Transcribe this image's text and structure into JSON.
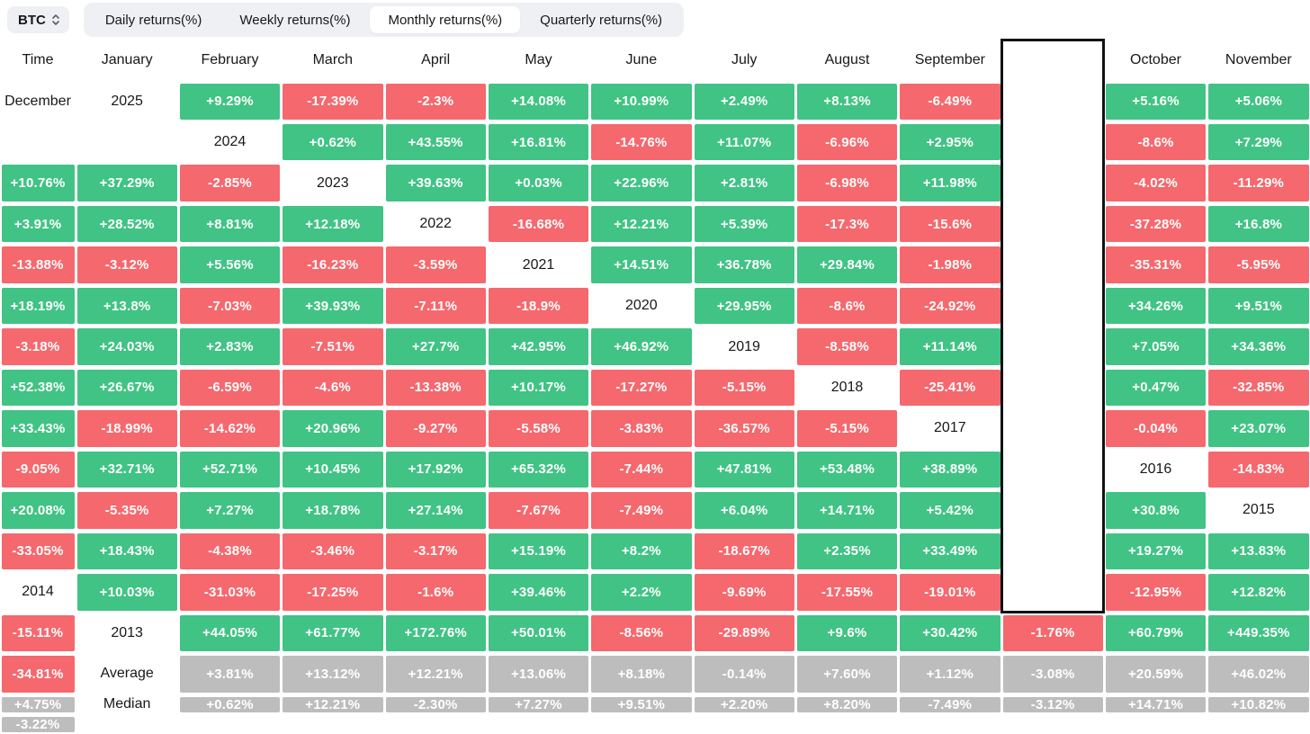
{
  "colors": {
    "positive": "#40C384",
    "negative": "#F5686D",
    "summary": "#BDBDBD",
    "highlight_border": "#101214",
    "pill_bg": "#EEF0F4",
    "text_dark": "#17181B"
  },
  "toolbar": {
    "symbol": "BTC",
    "tabs": [
      {
        "label": "Daily returns(%)",
        "active": false
      },
      {
        "label": "Weekly returns(%)",
        "active": false
      },
      {
        "label": "Monthly returns(%)",
        "active": true
      },
      {
        "label": "Quarterly returns(%)",
        "active": false
      }
    ]
  },
  "table": {
    "corner": "Time",
    "months": [
      "January",
      "February",
      "March",
      "April",
      "May",
      "June",
      "July",
      "August",
      "September",
      "October",
      "November",
      "December"
    ],
    "highlighted_month": "October",
    "rows": [
      {
        "label": "2025",
        "type": "year",
        "values": [
          "+9.29%",
          "-17.39%",
          "-2.3%",
          "+14.08%",
          "+10.99%",
          "+2.49%",
          "+8.13%",
          "-6.49%",
          "+5.16%",
          "+5.06%",
          "",
          ""
        ]
      },
      {
        "label": "2024",
        "type": "year",
        "values": [
          "+0.62%",
          "+43.55%",
          "+16.81%",
          "-14.76%",
          "+11.07%",
          "-6.96%",
          "+2.95%",
          "-8.6%",
          "+7.29%",
          "+10.76%",
          "+37.29%",
          "-2.85%"
        ]
      },
      {
        "label": "2023",
        "type": "year",
        "values": [
          "+39.63%",
          "+0.03%",
          "+22.96%",
          "+2.81%",
          "-6.98%",
          "+11.98%",
          "-4.02%",
          "-11.29%",
          "+3.91%",
          "+28.52%",
          "+8.81%",
          "+12.18%"
        ]
      },
      {
        "label": "2022",
        "type": "year",
        "values": [
          "-16.68%",
          "+12.21%",
          "+5.39%",
          "-17.3%",
          "-15.6%",
          "-37.28%",
          "+16.8%",
          "-13.88%",
          "-3.12%",
          "+5.56%",
          "-16.23%",
          "-3.59%"
        ]
      },
      {
        "label": "2021",
        "type": "year",
        "values": [
          "+14.51%",
          "+36.78%",
          "+29.84%",
          "-1.98%",
          "-35.31%",
          "-5.95%",
          "+18.19%",
          "+13.8%",
          "-7.03%",
          "+39.93%",
          "-7.11%",
          "-18.9%"
        ]
      },
      {
        "label": "2020",
        "type": "year",
        "values": [
          "+29.95%",
          "-8.6%",
          "-24.92%",
          "+34.26%",
          "+9.51%",
          "-3.18%",
          "+24.03%",
          "+2.83%",
          "-7.51%",
          "+27.7%",
          "+42.95%",
          "+46.92%"
        ]
      },
      {
        "label": "2019",
        "type": "year",
        "values": [
          "-8.58%",
          "+11.14%",
          "+7.05%",
          "+34.36%",
          "+52.38%",
          "+26.67%",
          "-6.59%",
          "-4.6%",
          "-13.38%",
          "+10.17%",
          "-17.27%",
          "-5.15%"
        ]
      },
      {
        "label": "2018",
        "type": "year",
        "values": [
          "-25.41%",
          "+0.47%",
          "-32.85%",
          "+33.43%",
          "-18.99%",
          "-14.62%",
          "+20.96%",
          "-9.27%",
          "-5.58%",
          "-3.83%",
          "-36.57%",
          "-5.15%"
        ]
      },
      {
        "label": "2017",
        "type": "year",
        "values": [
          "-0.04%",
          "+23.07%",
          "-9.05%",
          "+32.71%",
          "+52.71%",
          "+10.45%",
          "+17.92%",
          "+65.32%",
          "-7.44%",
          "+47.81%",
          "+53.48%",
          "+38.89%"
        ]
      },
      {
        "label": "2016",
        "type": "year",
        "values": [
          "-14.83%",
          "+20.08%",
          "-5.35%",
          "+7.27%",
          "+18.78%",
          "+27.14%",
          "-7.67%",
          "-7.49%",
          "+6.04%",
          "+14.71%",
          "+5.42%",
          "+30.8%"
        ]
      },
      {
        "label": "2015",
        "type": "year",
        "values": [
          "-33.05%",
          "+18.43%",
          "-4.38%",
          "-3.46%",
          "-3.17%",
          "+15.19%",
          "+8.2%",
          "-18.67%",
          "+2.35%",
          "+33.49%",
          "+19.27%",
          "+13.83%"
        ]
      },
      {
        "label": "2014",
        "type": "year",
        "values": [
          "+10.03%",
          "-31.03%",
          "-17.25%",
          "-1.6%",
          "+39.46%",
          "+2.2%",
          "-9.69%",
          "-17.55%",
          "-19.01%",
          "-12.95%",
          "+12.82%",
          "-15.11%"
        ]
      },
      {
        "label": "2013",
        "type": "year",
        "values": [
          "+44.05%",
          "+61.77%",
          "+172.76%",
          "+50.01%",
          "-8.56%",
          "-29.89%",
          "+9.6%",
          "+30.42%",
          "-1.76%",
          "+60.79%",
          "+449.35%",
          "-34.81%"
        ]
      },
      {
        "label": "Average",
        "type": "summary",
        "values": [
          "+3.81%",
          "+13.12%",
          "+12.21%",
          "+13.06%",
          "+8.18%",
          "-0.14%",
          "+7.60%",
          "+1.12%",
          "-3.08%",
          "+20.59%",
          "+46.02%",
          "+4.75%"
        ]
      },
      {
        "label": "Median",
        "type": "summary",
        "values": [
          "+0.62%",
          "+12.21%",
          "-2.30%",
          "+7.27%",
          "+9.51%",
          "+2.20%",
          "+8.20%",
          "-7.49%",
          "-3.12%",
          "+14.71%",
          "+10.82%",
          "-3.22%"
        ]
      }
    ]
  },
  "chart_data": {
    "type": "heatmap",
    "title": "BTC Monthly returns(%)",
    "x_labels": [
      "January",
      "February",
      "March",
      "April",
      "May",
      "June",
      "July",
      "August",
      "September",
      "October",
      "November",
      "December"
    ],
    "y_labels": [
      "2025",
      "2024",
      "2023",
      "2022",
      "2021",
      "2020",
      "2019",
      "2018",
      "2017",
      "2016",
      "2015",
      "2014",
      "2013",
      "Average",
      "Median"
    ],
    "highlighted_column": "October",
    "values": [
      [
        9.29,
        -17.39,
        -2.3,
        14.08,
        10.99,
        2.49,
        8.13,
        -6.49,
        5.16,
        5.06,
        null,
        null
      ],
      [
        0.62,
        43.55,
        16.81,
        -14.76,
        11.07,
        -6.96,
        2.95,
        -8.6,
        7.29,
        10.76,
        37.29,
        -2.85
      ],
      [
        39.63,
        0.03,
        22.96,
        2.81,
        -6.98,
        11.98,
        -4.02,
        -11.29,
        3.91,
        28.52,
        8.81,
        12.18
      ],
      [
        -16.68,
        12.21,
        5.39,
        -17.3,
        -15.6,
        -37.28,
        16.8,
        -13.88,
        -3.12,
        5.56,
        -16.23,
        -3.59
      ],
      [
        14.51,
        36.78,
        29.84,
        -1.98,
        -35.31,
        -5.95,
        18.19,
        13.8,
        -7.03,
        39.93,
        -7.11,
        -18.9
      ],
      [
        29.95,
        -8.6,
        -24.92,
        34.26,
        9.51,
        -3.18,
        24.03,
        2.83,
        -7.51,
        27.7,
        42.95,
        46.92
      ],
      [
        -8.58,
        11.14,
        7.05,
        34.36,
        52.38,
        26.67,
        -6.59,
        -4.6,
        -13.38,
        10.17,
        -17.27,
        -5.15
      ],
      [
        -25.41,
        0.47,
        -32.85,
        33.43,
        -18.99,
        -14.62,
        20.96,
        -9.27,
        -5.58,
        -3.83,
        -36.57,
        -5.15
      ],
      [
        -0.04,
        23.07,
        -9.05,
        32.71,
        52.71,
        10.45,
        17.92,
        65.32,
        -7.44,
        47.81,
        53.48,
        38.89
      ],
      [
        -14.83,
        20.08,
        -5.35,
        7.27,
        18.78,
        27.14,
        -7.67,
        -7.49,
        6.04,
        14.71,
        5.42,
        30.8
      ],
      [
        -33.05,
        18.43,
        -4.38,
        -3.46,
        -3.17,
        15.19,
        8.2,
        -18.67,
        2.35,
        33.49,
        19.27,
        13.83
      ],
      [
        10.03,
        -31.03,
        -17.25,
        -1.6,
        39.46,
        2.2,
        -9.69,
        -17.55,
        -19.01,
        -12.95,
        12.82,
        -15.11
      ],
      [
        44.05,
        61.77,
        172.76,
        50.01,
        -8.56,
        -29.89,
        9.6,
        30.42,
        -1.76,
        60.79,
        449.35,
        -34.81
      ],
      [
        3.81,
        13.12,
        12.21,
        13.06,
        8.18,
        -0.14,
        7.6,
        1.12,
        -3.08,
        20.59,
        46.02,
        4.75
      ],
      [
        0.62,
        12.21,
        -2.3,
        7.27,
        9.51,
        2.2,
        8.2,
        -7.49,
        -3.12,
        14.71,
        10.82,
        -3.22
      ]
    ],
    "color_rule": "green if value >= 0, red if value < 0, gray for Average/Median rows",
    "legend_position": "none",
    "grid": false
  }
}
